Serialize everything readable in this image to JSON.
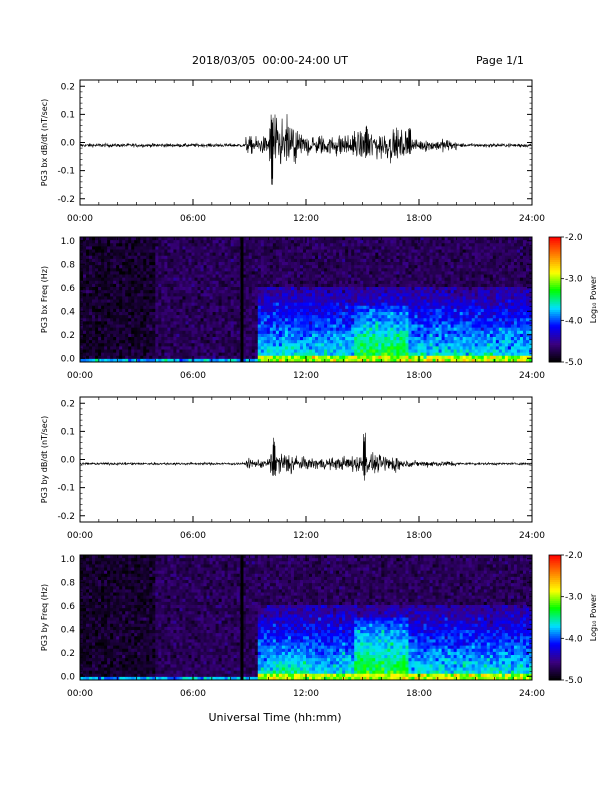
{
  "header": {
    "title": "2018/03/05  00:00-24:00 UT",
    "page": "Page 1/1"
  },
  "x_axis": {
    "label": "Universal Time (hh:mm)",
    "ticks": [
      "00:00",
      "06:00",
      "12:00",
      "18:00",
      "24:00"
    ]
  },
  "chart_data": [
    {
      "type": "line",
      "id": "bx-waveform",
      "ylabel": "PG3 bx dB/dt (nT/sec)",
      "xlim_hours": [
        0,
        24
      ],
      "ylim": [
        -0.2,
        0.2
      ],
      "yticks": [
        "0.2",
        "0.1",
        "0.0",
        "-0.1",
        "-0.2"
      ],
      "baseline": -0.01,
      "noise_envelope": [
        {
          "from_h": 0.0,
          "to_h": 8.8,
          "amp": 0.006
        },
        {
          "from_h": 8.8,
          "to_h": 10.0,
          "amp": 0.03
        },
        {
          "from_h": 10.0,
          "to_h": 11.5,
          "amp": 0.09
        },
        {
          "from_h": 11.5,
          "to_h": 14.5,
          "amp": 0.035
        },
        {
          "from_h": 14.5,
          "to_h": 17.5,
          "amp": 0.05
        },
        {
          "from_h": 17.5,
          "to_h": 20.0,
          "amp": 0.02
        },
        {
          "from_h": 20.0,
          "to_h": 24.0,
          "amp": 0.006
        }
      ],
      "peaks": [
        {
          "t": 10.2,
          "max": 0.11,
          "min": -0.17
        },
        {
          "t": 15.2,
          "max": 0.06,
          "min": -0.06
        },
        {
          "t": 17.5,
          "max": 0.07,
          "min": -0.05
        }
      ]
    },
    {
      "type": "heatmap",
      "id": "bx-spectrogram",
      "ylabel": "PG3 bx Freq (Hz)",
      "xlim_hours": [
        0,
        24
      ],
      "ylim": [
        0.0,
        1.0
      ],
      "yticks": [
        "1.0",
        "0.8",
        "0.6",
        "0.4",
        "0.2",
        "0.0"
      ],
      "gap_line_hour": 8.6,
      "colorbar": {
        "label": "Log₁₀ Power",
        "range": [
          -5.0,
          -2.0
        ],
        "ticks": [
          "-2.0",
          "-3.0",
          "-4.0",
          "-5.0"
        ],
        "colors": [
          "#000000",
          "#3a0080",
          "#0000ff",
          "#00e0ff",
          "#00ff00",
          "#ffff00",
          "#ff7f00",
          "#ff0000"
        ]
      },
      "activity": [
        {
          "from_h": 9.5,
          "to_h": 24.0,
          "fmax": 0.6,
          "level": -3.6
        },
        {
          "from_h": 10.0,
          "to_h": 12.0,
          "fmax": 0.3,
          "level": -3.5
        },
        {
          "from_h": 14.5,
          "to_h": 17.5,
          "fmax": 0.45,
          "level": -3.2
        }
      ]
    },
    {
      "type": "line",
      "id": "by-waveform",
      "ylabel": "PG3 by dB/dt (nT/sec)",
      "xlim_hours": [
        0,
        24
      ],
      "ylim": [
        -0.2,
        0.2
      ],
      "yticks": [
        "0.2",
        "0.1",
        "0.0",
        "-0.1",
        "-0.2"
      ],
      "baseline": -0.015,
      "noise_envelope": [
        {
          "from_h": 0.0,
          "to_h": 8.8,
          "amp": 0.004
        },
        {
          "from_h": 8.8,
          "to_h": 10.0,
          "amp": 0.015
        },
        {
          "from_h": 10.0,
          "to_h": 11.5,
          "amp": 0.04
        },
        {
          "from_h": 11.5,
          "to_h": 14.0,
          "amp": 0.02
        },
        {
          "from_h": 14.0,
          "to_h": 17.0,
          "amp": 0.03
        },
        {
          "from_h": 17.0,
          "to_h": 20.0,
          "amp": 0.01
        },
        {
          "from_h": 20.0,
          "to_h": 24.0,
          "amp": 0.004
        }
      ],
      "peaks": [
        {
          "t": 10.3,
          "max": 0.08,
          "min": -0.06
        },
        {
          "t": 15.1,
          "max": 0.1,
          "min": -0.09
        }
      ]
    },
    {
      "type": "heatmap",
      "id": "by-spectrogram",
      "ylabel": "PG3 by Freq (Hz)",
      "xlim_hours": [
        0,
        24
      ],
      "ylim": [
        0.0,
        1.0
      ],
      "yticks": [
        "1.0",
        "0.8",
        "0.6",
        "0.4",
        "0.2",
        "0.0"
      ],
      "gap_line_hour": 8.6,
      "colorbar": {
        "label": "Log₁₀ Power",
        "range": [
          -5.0,
          -2.0
        ],
        "ticks": [
          "-2.0",
          "-3.0",
          "-4.0",
          "-5.0"
        ],
        "colors": [
          "#000000",
          "#3a0080",
          "#0000ff",
          "#00e0ff",
          "#00ff00",
          "#ffff00",
          "#ff7f00",
          "#ff0000"
        ]
      },
      "activity": [
        {
          "from_h": 9.5,
          "to_h": 24.0,
          "fmax": 0.6,
          "level": -3.6
        },
        {
          "from_h": 10.0,
          "to_h": 12.0,
          "fmax": 0.35,
          "level": -3.4
        },
        {
          "from_h": 14.5,
          "to_h": 17.5,
          "fmax": 0.5,
          "level": -3.2
        }
      ]
    }
  ]
}
